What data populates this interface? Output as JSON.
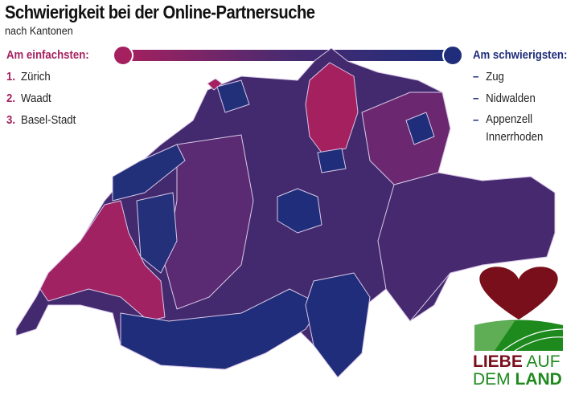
{
  "header": {
    "title": "Schwierigkeit bei der Online-Partnersuche",
    "subtitle": "nach Kantonen"
  },
  "legend_easy": {
    "heading": "Am einfachsten:",
    "items": [
      {
        "rank": "1.",
        "name": "Zürich"
      },
      {
        "rank": "2.",
        "name": "Waadt"
      },
      {
        "rank": "3.",
        "name": "Basel-Stadt"
      }
    ]
  },
  "legend_hard": {
    "heading": "Am schwierigsten:",
    "items": [
      {
        "mark": "–",
        "name": "Zug"
      },
      {
        "mark": "–",
        "name": "Nidwalden"
      },
      {
        "mark": "–",
        "name": "Appenzell Innerrhoden"
      }
    ]
  },
  "colors": {
    "easiest": "#a5205f",
    "hardest": "#1f2d7a",
    "mid": "#4a2a70"
  },
  "logo": {
    "line1a": "LIEBE",
    "line1b": "AUF",
    "line2a": "DEM",
    "line2b": "LAND",
    "icon": "heart-fields-icon"
  }
}
